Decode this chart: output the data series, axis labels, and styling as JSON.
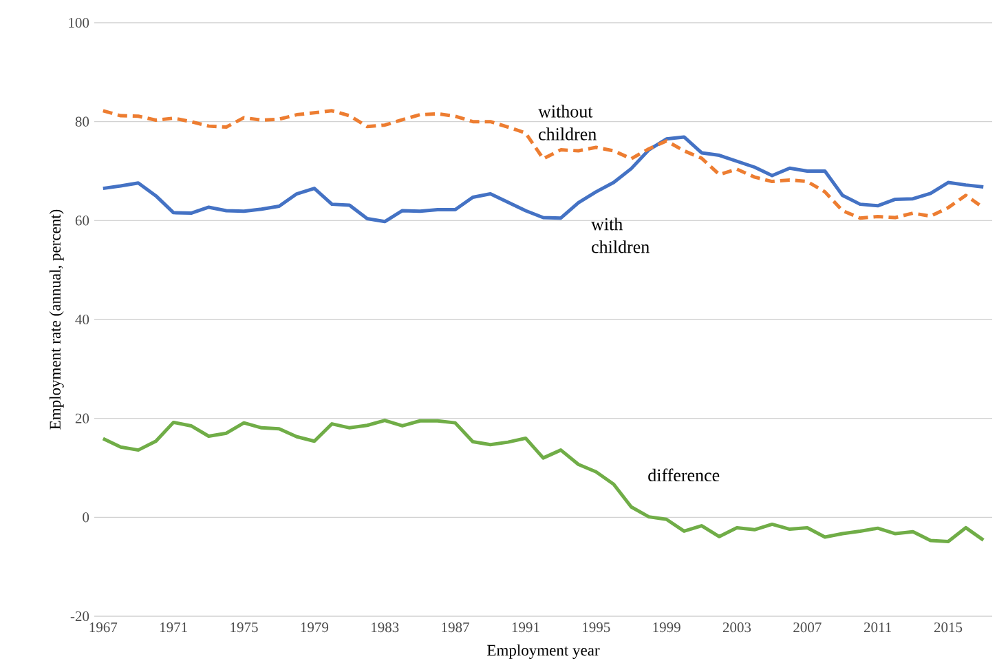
{
  "chart_data": {
    "type": "line",
    "xlabel": "Employment year",
    "ylabel": "Employment rate (annual, percent)",
    "x": [
      1967,
      1968,
      1969,
      1970,
      1971,
      1972,
      1973,
      1974,
      1975,
      1976,
      1977,
      1978,
      1979,
      1980,
      1981,
      1982,
      1983,
      1984,
      1985,
      1986,
      1987,
      1988,
      1989,
      1990,
      1991,
      1992,
      1993,
      1994,
      1995,
      1996,
      1997,
      1998,
      1999,
      2000,
      2001,
      2002,
      2003,
      2004,
      2005,
      2006,
      2007,
      2008,
      2009,
      2010,
      2011,
      2012,
      2013,
      2014,
      2015,
      2016,
      2017
    ],
    "xlim": [
      1966.5,
      2017.5
    ],
    "xticks": [
      1967,
      1971,
      1975,
      1979,
      1983,
      1987,
      1991,
      1995,
      1999,
      2003,
      2007,
      2011,
      2015
    ],
    "ylim": [
      -20,
      100
    ],
    "yticks": [
      -20,
      0,
      20,
      40,
      60,
      80,
      100
    ],
    "grid": "y",
    "legend": false,
    "marker": "none",
    "series": [
      {
        "name": "with children",
        "color": "#4472c4",
        "line_style": "solid",
        "values": [
          66.5,
          67.0,
          67.6,
          65.0,
          61.6,
          61.5,
          62.7,
          62.0,
          61.9,
          62.3,
          62.9,
          65.4,
          66.5,
          63.3,
          63.1,
          60.4,
          59.8,
          62.0,
          61.9,
          62.2,
          62.2,
          64.7,
          65.4,
          63.7,
          62.0,
          60.6,
          60.5,
          63.6,
          65.8,
          67.7,
          70.5,
          74.3,
          76.5,
          76.9,
          73.7,
          73.2,
          72.0,
          70.8,
          69.1,
          70.6,
          70.0,
          70.0,
          65.1,
          63.3,
          63.0,
          64.3,
          64.4,
          65.5,
          67.7,
          67.2,
          66.8
        ]
      },
      {
        "name": "without children",
        "color": "#ed7d31",
        "line_style": "dashed",
        "values": [
          82.2,
          81.2,
          81.1,
          80.3,
          80.7,
          80.0,
          79.1,
          78.9,
          80.8,
          80.3,
          80.5,
          81.4,
          81.8,
          82.2,
          81.2,
          79.0,
          79.3,
          80.4,
          81.4,
          81.6,
          81.1,
          80.0,
          80.0,
          78.9,
          77.7,
          72.5,
          74.3,
          74.1,
          74.8,
          74.1,
          72.5,
          74.5,
          76.1,
          74.1,
          72.6,
          69.3,
          70.4,
          68.8,
          67.9,
          68.2,
          67.9,
          65.8,
          62.0,
          60.5,
          60.8,
          60.6,
          61.5,
          60.9,
          62.6,
          65.1,
          62.6
        ]
      },
      {
        "name": "difference",
        "color": "#70ad47",
        "line_style": "solid",
        "values": [
          15.9,
          14.2,
          13.6,
          15.4,
          19.2,
          18.5,
          16.4,
          17.0,
          19.1,
          18.1,
          17.9,
          16.3,
          15.4,
          18.9,
          18.1,
          18.6,
          19.6,
          18.5,
          19.5,
          19.5,
          19.1,
          15.3,
          14.7,
          15.2,
          16.0,
          12.0,
          13.6,
          10.7,
          9.2,
          6.7,
          2.1,
          0.1,
          -0.4,
          -2.8,
          -1.7,
          -3.9,
          -2.1,
          -2.5,
          -1.4,
          -2.4,
          -2.1,
          -4.0,
          -3.3,
          -2.8,
          -2.2,
          -3.3,
          -2.9,
          -4.7,
          -4.9,
          -2.1,
          -4.6
        ]
      }
    ]
  }
}
